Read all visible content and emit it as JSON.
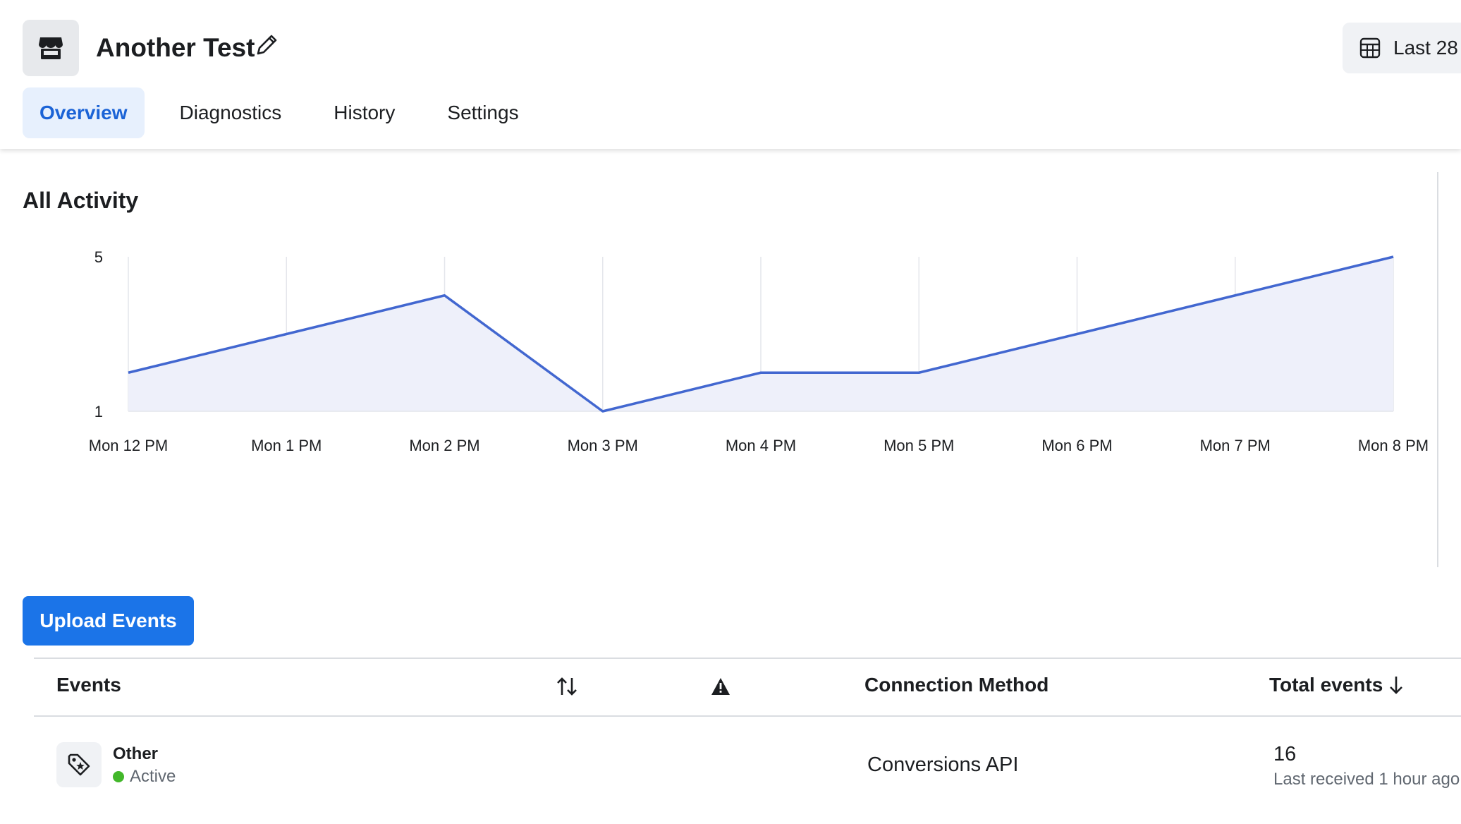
{
  "header": {
    "title": "Another Test",
    "store_icon": "storefront-icon",
    "edit_icon": "pencil-icon",
    "date_range_label": "Last 28",
    "date_range_icon": "calendar-grid-icon"
  },
  "tabs": [
    {
      "label": "Overview",
      "active": true
    },
    {
      "label": "Diagnostics",
      "active": false
    },
    {
      "label": "History",
      "active": false
    },
    {
      "label": "Settings",
      "active": false
    }
  ],
  "activity": {
    "title": "All Activity"
  },
  "chart_data": {
    "type": "area",
    "title": "All Activity",
    "categories": [
      "Mon 12 PM",
      "Mon 1 PM",
      "Mon 2 PM",
      "Mon 3 PM",
      "Mon 4 PM",
      "Mon 5 PM",
      "Mon 6 PM",
      "Mon 7 PM",
      "Mon 8 PM"
    ],
    "y_ticks": [
      "5",
      "1"
    ],
    "ylim": [
      1,
      5
    ],
    "values": [
      2,
      3,
      4,
      1,
      2,
      2,
      3,
      4,
      5
    ],
    "grid": "vertical",
    "line_color": "#4267d0",
    "fill_color": "#eef0fa"
  },
  "upload_button": {
    "label": "Upload Events"
  },
  "table": {
    "headers": {
      "events": "Events",
      "sort_icon": "sort-up-down-icon",
      "warning_icon": "warning-icon",
      "connection_method": "Connection Method",
      "total_events": "Total events",
      "total_sort_icon": "arrow-down-icon"
    },
    "rows": [
      {
        "icon": "tag-icon",
        "name": "Other",
        "status": "Active",
        "status_color": "#42b72a",
        "connection_method": "Conversions API",
        "total": "16",
        "last_received": "Last received 1 hour ago"
      }
    ]
  },
  "colors": {
    "accent": "#1b74e8",
    "active_tab_bg": "#e7f0fd",
    "active_tab_text": "#1b63d6"
  }
}
